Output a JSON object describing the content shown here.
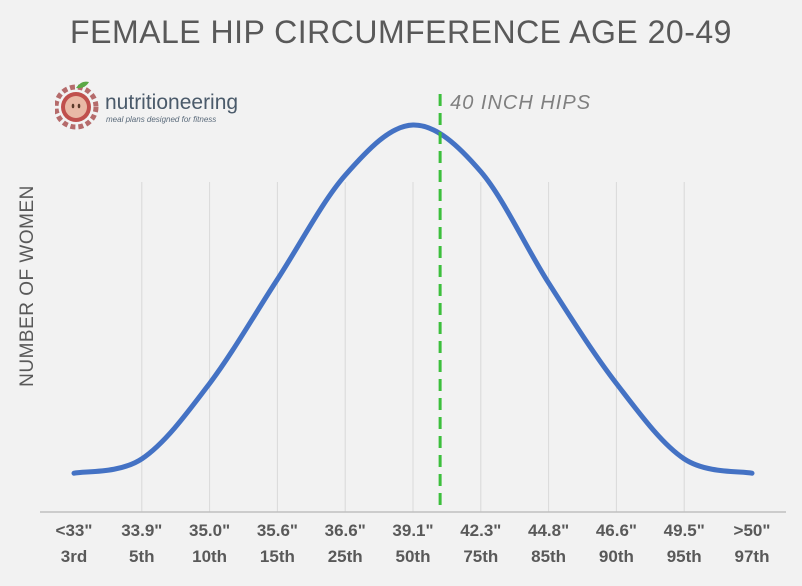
{
  "chart_data": {
    "type": "line",
    "title": "FEMALE HIP CIRCUMFERENCE AGE 20-49",
    "ylabel": "NUMBER OF WOMEN",
    "xlabel": "",
    "categories": [
      {
        "measure": "<33\"",
        "percentile": "3rd"
      },
      {
        "measure": "33.9\"",
        "percentile": "5th"
      },
      {
        "measure": "35.0\"",
        "percentile": "10th"
      },
      {
        "measure": "35.6\"",
        "percentile": "15th"
      },
      {
        "measure": "36.6\"",
        "percentile": "25th"
      },
      {
        "measure": "39.1\"",
        "percentile": "50th"
      },
      {
        "measure": "42.3\"",
        "percentile": "75th"
      },
      {
        "measure": "44.8\"",
        "percentile": "85th"
      },
      {
        "measure": "46.6\"",
        "percentile": "90th"
      },
      {
        "measure": "49.5\"",
        "percentile": "95th"
      },
      {
        "measure": ">50\"",
        "percentile": "97th"
      }
    ],
    "series": [
      {
        "values": [
          0.03,
          0.07,
          0.28,
          0.57,
          0.86,
          1.0,
          0.87,
          0.56,
          0.28,
          0.07,
          0.03
        ],
        "color": "#4472c4"
      }
    ],
    "annotations": [
      {
        "text": "40 INCH HIPS",
        "x_position": 5.4,
        "color": "#3cbf3c",
        "style": "dashed-vertical-line"
      }
    ],
    "grid": "vertical",
    "legend": "none"
  },
  "logo": {
    "brand": "nutritioneering",
    "tagline": "meal plans designed for fitness",
    "icon": "apple-gear-icon"
  }
}
